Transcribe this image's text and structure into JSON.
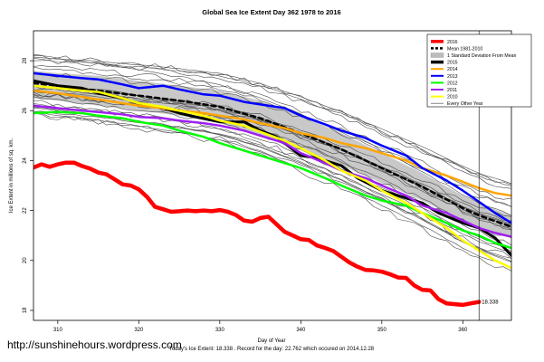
{
  "chart_data": {
    "type": "line",
    "title": "Global Sea Ice Extent Day 362 1978 to 2016",
    "xlabel": "Day of Year",
    "ylabel": "Ice Extent in millions of sq. km.",
    "xlim": [
      307,
      366
    ],
    "ylim": [
      17.6,
      29.2
    ],
    "xticks": [
      310,
      320,
      330,
      340,
      350,
      360
    ],
    "yticks": [
      18,
      20,
      22,
      24,
      26,
      28
    ],
    "vline": 362,
    "footer": "Today's Ice Extent: 18.338  . Record for the day: 22.762 which occured on 2014.12.28",
    "end_label": "18.338",
    "legend_position": "top-right",
    "legend": [
      {
        "label": "2016",
        "color": "#ff0000",
        "style": "solid-thick"
      },
      {
        "label": "Mean 1981-2010",
        "color": "#000000",
        "style": "dashed"
      },
      {
        "label": "1 Standard Deviation From Mean",
        "color": "#bdbdbd",
        "style": "fill"
      },
      {
        "label": "2015",
        "color": "#000000",
        "style": "solid-thick"
      },
      {
        "label": "2014",
        "color": "#ffa500",
        "style": "solid"
      },
      {
        "label": "2013",
        "color": "#0000ff",
        "style": "solid"
      },
      {
        "label": "2012",
        "color": "#00ff00",
        "style": "solid"
      },
      {
        "label": "2011",
        "color": "#a020f0",
        "style": "solid"
      },
      {
        "label": "2010",
        "color": "#ffff00",
        "style": "solid"
      },
      {
        "label": "Every Other Year",
        "color": "#555555",
        "style": "thin"
      }
    ],
    "band": {
      "x": [
        307,
        310,
        315,
        320,
        325,
        330,
        335,
        340,
        345,
        350,
        355,
        360,
        362,
        366
      ],
      "upper": [
        27.6,
        27.5,
        27.4,
        27.2,
        27.0,
        26.8,
        26.4,
        25.8,
        25.1,
        24.3,
        23.5,
        22.6,
        22.3,
        21.8
      ],
      "lower": [
        26.5,
        26.4,
        26.2,
        26.0,
        25.8,
        25.5,
        25.0,
        24.4,
        23.8,
        23.1,
        22.4,
        21.6,
        21.3,
        20.9
      ]
    },
    "series": [
      {
        "name": "2016",
        "color": "#ff0000",
        "width": 4.5,
        "x": [
          307,
          308,
          309,
          310,
          311,
          312,
          313,
          314,
          315,
          316,
          317,
          318,
          319,
          320,
          321,
          322,
          323,
          324,
          325,
          326,
          327,
          328,
          329,
          330,
          331,
          332,
          333,
          334,
          335,
          336,
          337,
          338,
          339,
          340,
          341,
          342,
          343,
          344,
          345,
          346,
          347,
          348,
          349,
          350,
          351,
          352,
          353,
          354,
          355,
          356,
          357,
          358,
          359,
          360,
          361,
          362
        ],
        "y": [
          23.72,
          23.85,
          23.75,
          23.85,
          23.92,
          23.92,
          23.78,
          23.68,
          23.52,
          23.45,
          23.25,
          23.05,
          23.0,
          22.85,
          22.55,
          22.15,
          22.05,
          21.95,
          21.97,
          22.0,
          21.97,
          22.0,
          21.97,
          22.02,
          21.95,
          21.82,
          21.6,
          21.55,
          21.7,
          21.75,
          21.45,
          21.15,
          21.0,
          20.85,
          20.82,
          20.6,
          20.5,
          20.38,
          20.15,
          19.92,
          19.75,
          19.62,
          19.6,
          19.55,
          19.45,
          19.32,
          19.3,
          19.0,
          18.82,
          18.8,
          18.45,
          18.28,
          18.25,
          18.22,
          18.28,
          18.34
        ]
      },
      {
        "name": "Mean 1981-2010",
        "color": "#000000",
        "width": 2.5,
        "dash": "5,4",
        "x": [
          307,
          310,
          315,
          320,
          325,
          330,
          335,
          340,
          345,
          350,
          355,
          360,
          362,
          366
        ],
        "y": [
          27.1,
          27.0,
          26.8,
          26.6,
          26.4,
          26.15,
          25.7,
          25.1,
          24.45,
          23.7,
          22.95,
          22.1,
          21.8,
          21.35
        ]
      },
      {
        "name": "2015",
        "color": "#000000",
        "width": 3,
        "x": [
          307,
          310,
          313,
          315,
          318,
          320,
          323,
          325,
          327,
          330,
          333,
          335,
          337,
          340,
          342,
          345,
          347,
          350,
          352,
          355,
          357,
          360,
          362,
          364,
          366
        ],
        "y": [
          27.2,
          27.0,
          26.9,
          26.7,
          26.5,
          26.3,
          26.1,
          25.9,
          25.75,
          25.55,
          25.55,
          25.2,
          24.95,
          24.2,
          24.1,
          23.8,
          23.3,
          22.8,
          22.6,
          22.3,
          21.9,
          21.5,
          21.3,
          20.9,
          20.2
        ]
      },
      {
        "name": "2014",
        "color": "#ffa500",
        "width": 2.5,
        "x": [
          307,
          310,
          313,
          315,
          318,
          320,
          323,
          325,
          328,
          330,
          333,
          335,
          338,
          340,
          343,
          345,
          348,
          350,
          353,
          355,
          358,
          360,
          362,
          364,
          366
        ],
        "y": [
          26.8,
          26.7,
          26.55,
          26.45,
          26.3,
          26.2,
          26.1,
          26.0,
          25.9,
          25.8,
          25.65,
          25.5,
          25.3,
          25.1,
          24.9,
          24.7,
          24.5,
          24.3,
          24.0,
          23.7,
          23.4,
          23.15,
          22.9,
          22.7,
          22.6
        ]
      },
      {
        "name": "2013",
        "color": "#0000ff",
        "width": 2.5,
        "x": [
          307,
          310,
          313,
          315,
          318,
          320,
          323,
          325,
          328,
          330,
          333,
          335,
          338,
          340,
          343,
          345,
          348,
          350,
          353,
          355,
          358,
          360,
          362,
          364,
          366
        ],
        "y": [
          27.5,
          27.4,
          27.3,
          27.25,
          27.05,
          26.9,
          27.0,
          26.85,
          26.65,
          26.6,
          26.35,
          26.25,
          26.1,
          25.8,
          25.45,
          25.2,
          24.9,
          24.6,
          24.2,
          23.7,
          23.2,
          22.8,
          22.35,
          21.9,
          21.5
        ]
      },
      {
        "name": "2012",
        "color": "#00ff00",
        "width": 2.5,
        "x": [
          307,
          310,
          313,
          315,
          318,
          320,
          323,
          325,
          328,
          330,
          333,
          335,
          338,
          340,
          343,
          345,
          348,
          350,
          353,
          355,
          358,
          360,
          362,
          364,
          366
        ],
        "y": [
          25.9,
          25.95,
          25.9,
          25.8,
          25.7,
          25.55,
          25.4,
          25.2,
          24.95,
          24.7,
          24.4,
          24.2,
          23.9,
          23.7,
          23.3,
          23.0,
          22.6,
          22.4,
          22.2,
          21.9,
          21.5,
          21.2,
          21.0,
          20.7,
          20.5
        ]
      },
      {
        "name": "2011",
        "color": "#a020f0",
        "width": 2.5,
        "x": [
          307,
          310,
          313,
          315,
          318,
          320,
          323,
          325,
          328,
          330,
          333,
          335,
          338,
          340,
          343,
          345,
          348,
          350,
          353,
          355,
          358,
          360,
          362,
          364,
          366
        ],
        "y": [
          26.2,
          26.1,
          26.0,
          25.95,
          25.85,
          25.75,
          25.7,
          25.6,
          25.5,
          25.4,
          25.2,
          25.0,
          24.7,
          24.3,
          23.9,
          23.6,
          23.3,
          23.0,
          22.6,
          22.2,
          21.9,
          21.6,
          21.3,
          21.1,
          20.95
        ]
      },
      {
        "name": "2010",
        "color": "#ffff00",
        "width": 2.5,
        "x": [
          307,
          310,
          313,
          315,
          318,
          320,
          323,
          325,
          328,
          330,
          333,
          335,
          338,
          340,
          343,
          345,
          348,
          350,
          353,
          355,
          358,
          360,
          362,
          364,
          366
        ],
        "y": [
          27.0,
          26.9,
          26.8,
          26.75,
          26.5,
          26.3,
          26.15,
          26.0,
          25.8,
          25.6,
          25.4,
          25.15,
          24.8,
          24.5,
          24.0,
          23.6,
          23.2,
          22.8,
          22.3,
          21.9,
          21.3,
          20.8,
          20.4,
          20.0,
          19.7
        ]
      }
    ]
  },
  "footer": {
    "credit": "http://sunshinehours.wordpress.com"
  }
}
